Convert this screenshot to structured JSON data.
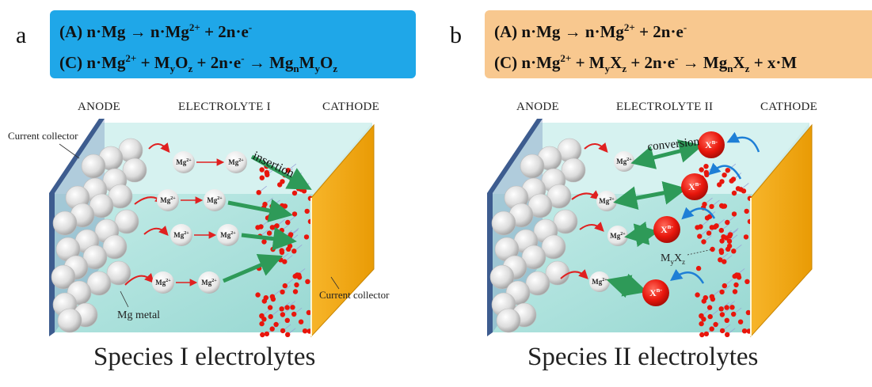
{
  "panel_a": {
    "letter": "a",
    "eq_label_a": "(A)",
    "eq_label_c": "(C)",
    "header_anode": "ANODE",
    "header_electrolyte": "ELECTROLYTE I",
    "header_cathode": "CATHODE",
    "label_current_collector_left": "Current collector",
    "label_current_collector_right": "Current collector",
    "label_mg_metal": "Mg metal",
    "label_insertion": "insertion",
    "caption": "Species I electrolytes",
    "box_color": "#1fa7e8"
  },
  "panel_b": {
    "letter": "b",
    "eq_label_a": "(A)",
    "eq_label_c": "(C)",
    "header_anode": "ANODE",
    "header_electrolyte": "ELECTROLYTE II",
    "header_cathode": "CATHODE",
    "label_conversion": "conversion",
    "label_myxz": "MyXz",
    "caption": "Species II electrolytes",
    "box_color": "#f8c88f"
  },
  "ion_labels": {
    "mg": "Mg2+",
    "x": "Xn-"
  },
  "colors": {
    "electrolyte": "#b5e6e1",
    "cathode_plate": "#f2a90c",
    "anode_plate": "#3d5c8f",
    "arrow_green": "#2e9a58",
    "arrow_red": "#e02020",
    "x_ion": "#e8160c",
    "dot_red": "#e8160c"
  }
}
